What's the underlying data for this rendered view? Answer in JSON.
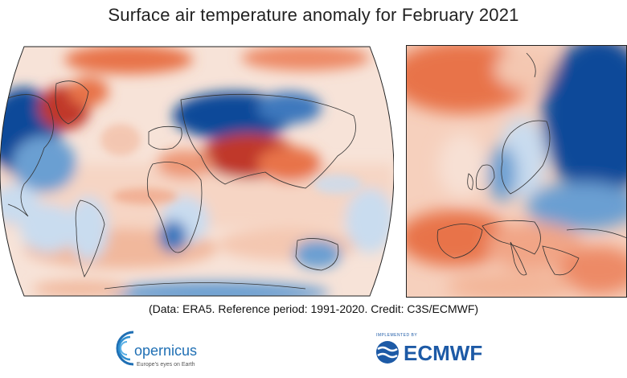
{
  "title": "Surface air temperature anomaly for February 2021",
  "caption": "(Data: ERA5.  Reference period: 1991-2020.  Credit: C3S/ECMWF)",
  "logos": {
    "copernicus": {
      "name": "opernicus",
      "tagline": "Europe's eyes on Earth",
      "icon": "copernicus-swirl-icon"
    },
    "ecmwf": {
      "name": "ECMWF",
      "tagline": "IMPLEMENTED BY",
      "icon": "ecmwf-waves-icon"
    }
  },
  "colors": {
    "warm_strong": "#c0392b",
    "warm_mid": "#e8734a",
    "warm_light": "#f6c8b2",
    "neutral": "#f4f4f4",
    "cool_light": "#c9dcef",
    "cool_mid": "#6a9fd2",
    "cool_strong": "#0b4a99",
    "copernicus_blue": "#1f6fb4",
    "ecmwf_blue": "#1d5aa6"
  }
}
